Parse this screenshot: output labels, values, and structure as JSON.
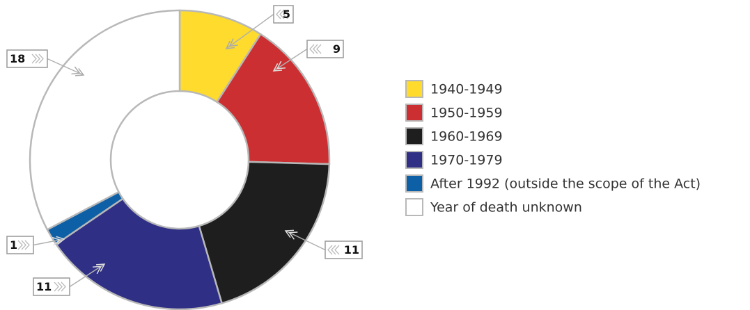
{
  "chart_data": {
    "type": "donut",
    "categories": [
      "1940-1949",
      "1950-1959",
      "1960-1969",
      "1970-1979",
      "After 1992 (outside the scope of the Act)",
      "Year of death unknown"
    ],
    "values": [
      5,
      9,
      11,
      11,
      1,
      18
    ],
    "colors": [
      "#fedb2c",
      "#cc2f31",
      "#1e1e1e",
      "#2e2f85",
      "#0d5fa6",
      "#ffffff"
    ]
  }
}
